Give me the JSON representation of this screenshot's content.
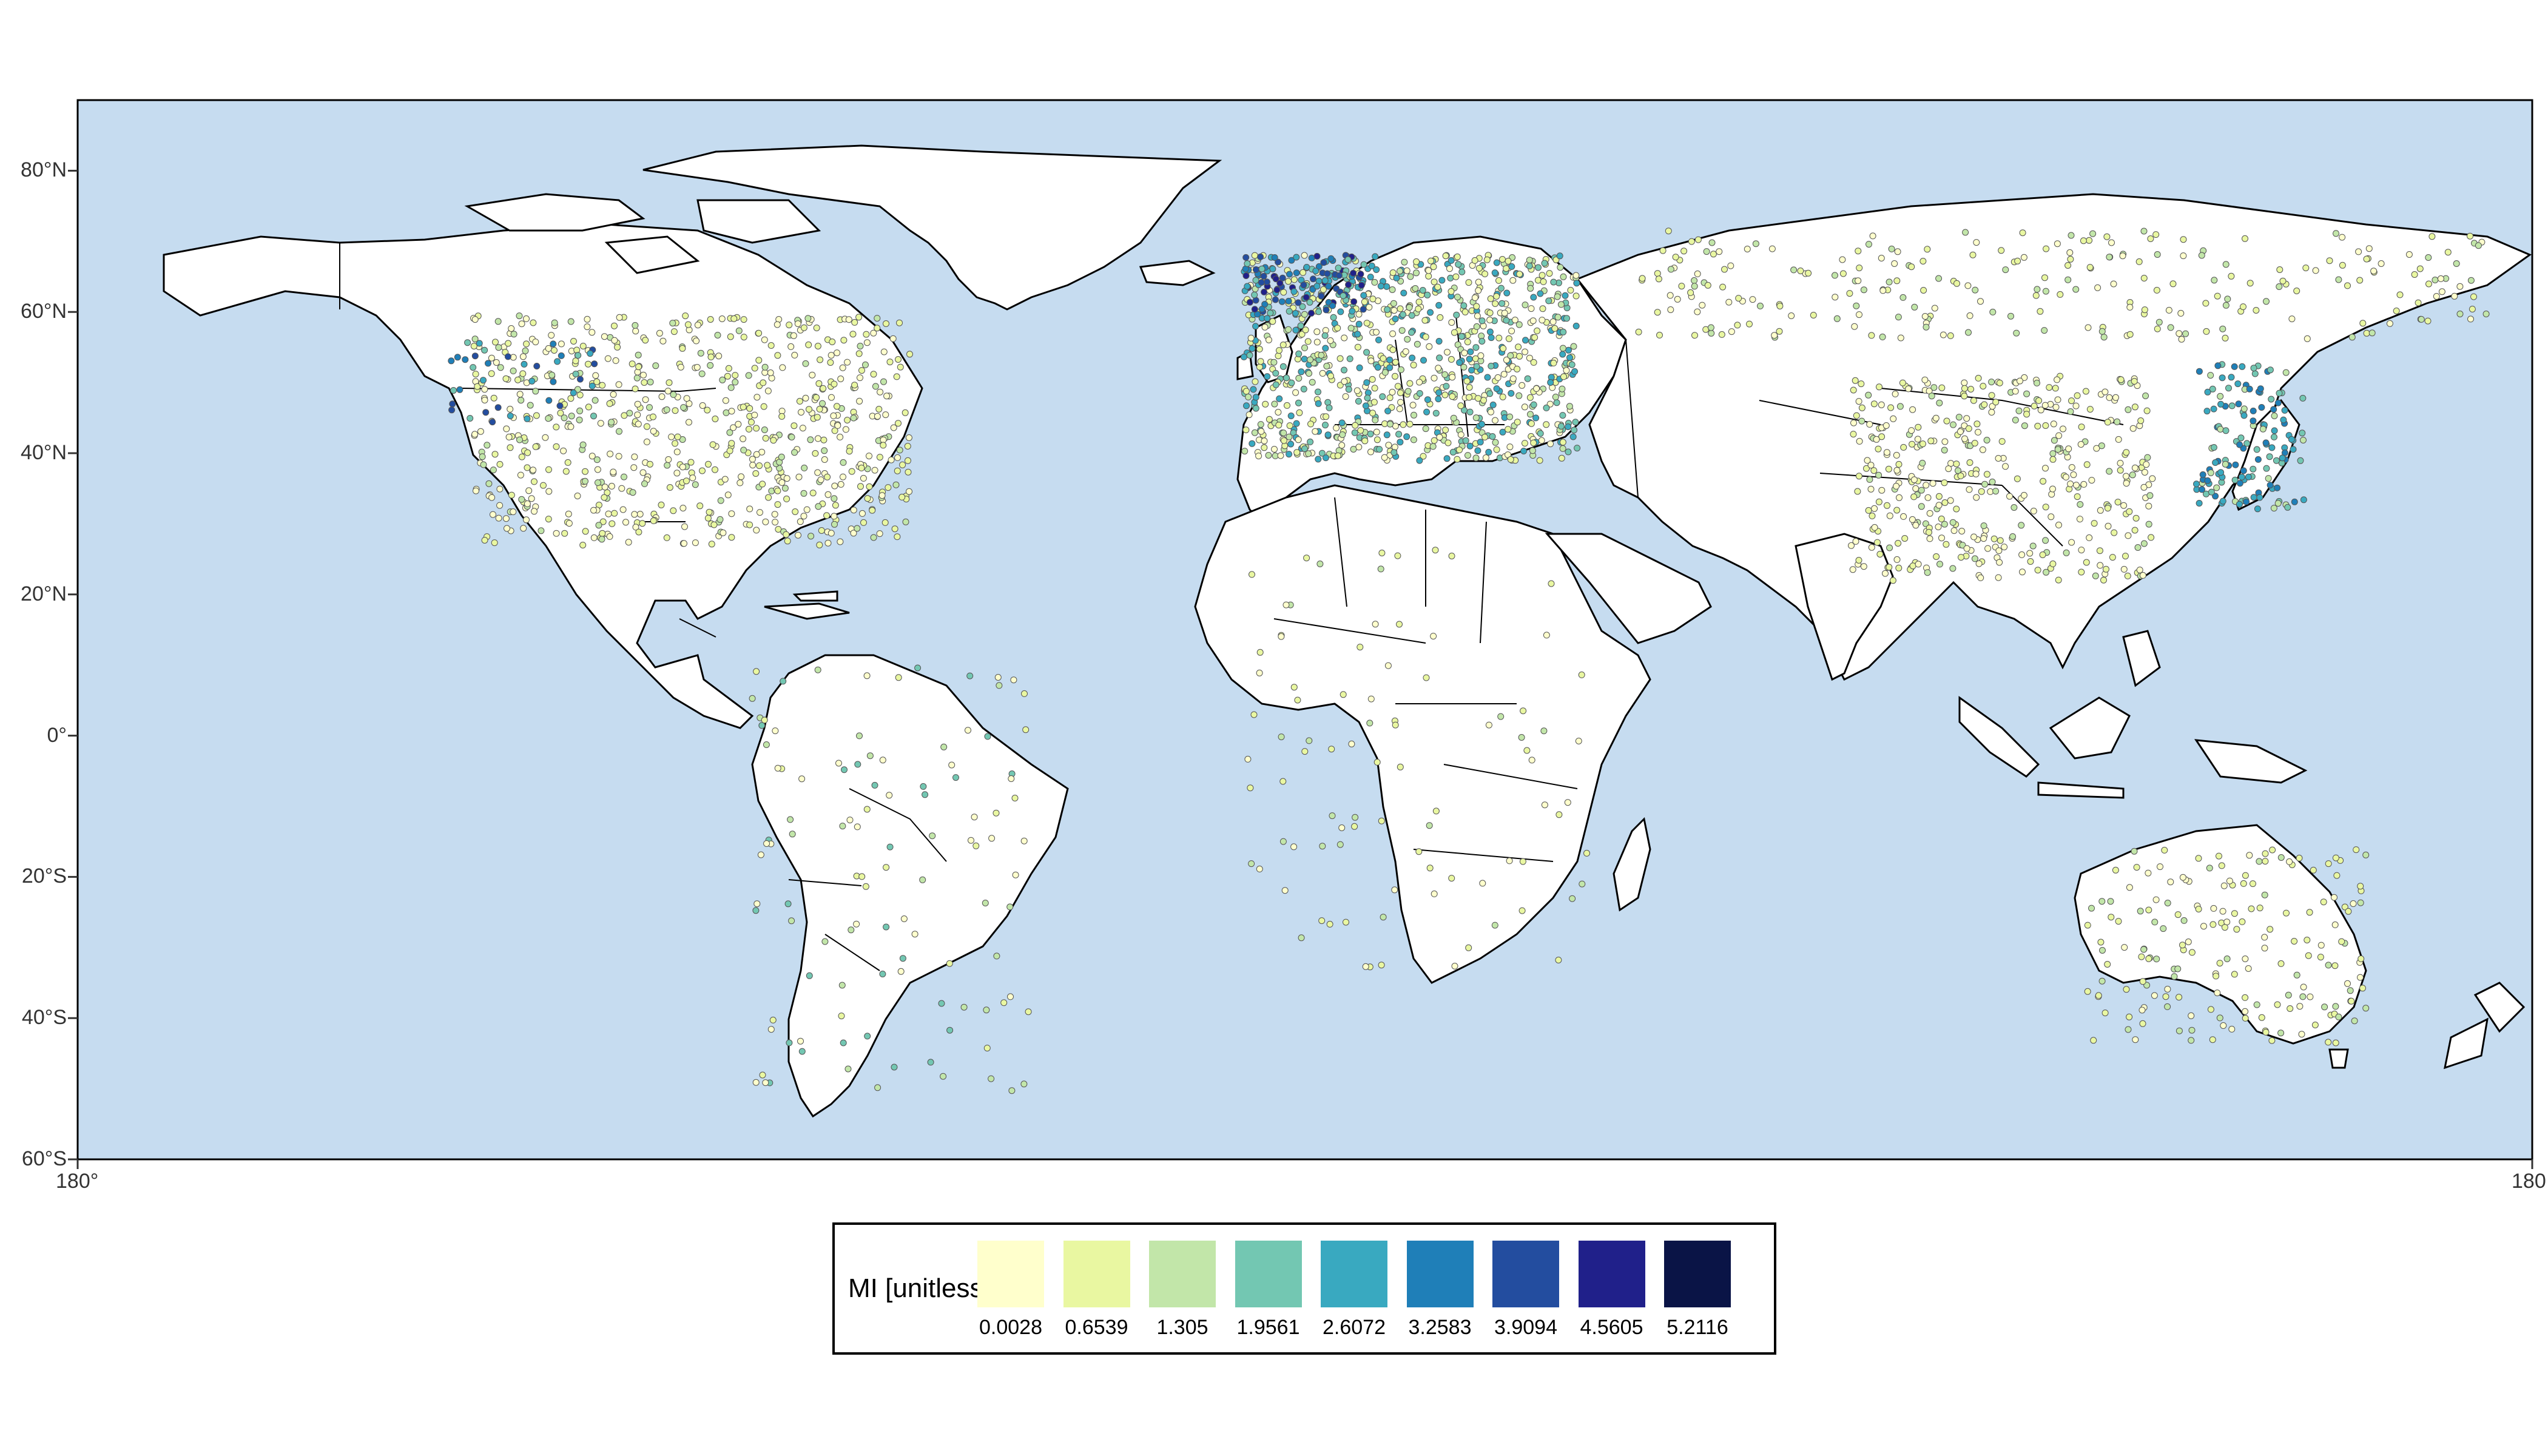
{
  "map": {
    "ocean_color": "#c6dcf0",
    "land_color": "#ffffff",
    "border_color": "#000000",
    "lat_ticks": [
      {
        "label": "80°N",
        "lat": 80
      },
      {
        "label": "60°N",
        "lat": 60
      },
      {
        "label": "40°N",
        "lat": 40
      },
      {
        "label": "20°N",
        "lat": 20
      },
      {
        "label": "0°",
        "lat": 0
      },
      {
        "label": "20°S",
        "lat": -20
      },
      {
        "label": "40°S",
        "lat": -40
      },
      {
        "label": "60°S",
        "lat": -60
      }
    ],
    "lon_ticks": [
      {
        "label": "180°",
        "lon": -180
      },
      {
        "label": "180",
        "lon": 180
      }
    ],
    "extent": {
      "lon": [
        -180,
        180
      ],
      "lat": [
        -60,
        90
      ]
    }
  },
  "legend": {
    "title": "MI [unitless]",
    "bins": [
      {
        "value": "0.0028",
        "color": "#ffffcc"
      },
      {
        "value": "0.6539",
        "color": "#e9f7a1"
      },
      {
        "value": "1.305",
        "color": "#c2e6a9"
      },
      {
        "value": "1.9561",
        "color": "#73c7b2"
      },
      {
        "value": "2.6072",
        "color": "#39a9c0"
      },
      {
        "value": "3.2583",
        "color": "#1f7fb8"
      },
      {
        "value": "3.9094",
        "color": "#234d9f"
      },
      {
        "value": "4.5605",
        "color": "#20208a"
      },
      {
        "value": "5.2116",
        "color": "#0a1446"
      }
    ]
  }
}
